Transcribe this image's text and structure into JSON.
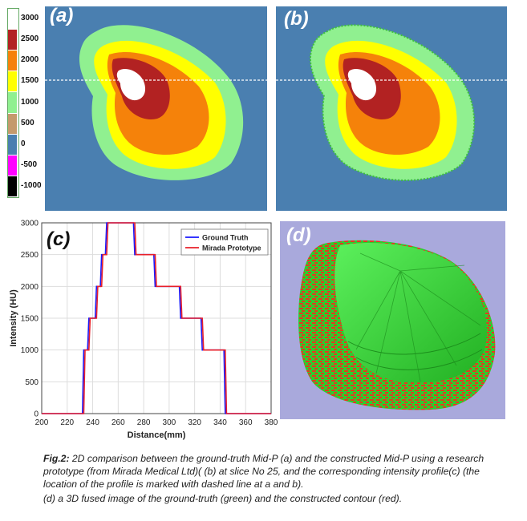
{
  "colorbar": {
    "labels": [
      "3000",
      "2500",
      "2000",
      "1500",
      "1000",
      "500",
      "0",
      "-500",
      "-1000"
    ],
    "colors": [
      "#ffffff",
      "#b22222",
      "#f5820a",
      "#ffff00",
      "#90f090",
      "#c49a6c",
      "#4a7fb0",
      "#ff00ff",
      "#000000"
    ]
  },
  "panels": {
    "a": {
      "label": "(a)"
    },
    "b": {
      "label": "(b)"
    },
    "c": {
      "label": "(c)"
    },
    "d": {
      "label": "(d)"
    }
  },
  "chart_data": {
    "type": "line",
    "xlabel": "Distance(mm)",
    "ylabel": "Intensity (HU)",
    "xlim": [
      200,
      380
    ],
    "ylim": [
      0,
      3000
    ],
    "x_ticks": [
      200,
      220,
      240,
      260,
      280,
      300,
      320,
      340,
      360,
      380
    ],
    "y_ticks": [
      0,
      500,
      1000,
      1500,
      2000,
      2500,
      3000
    ],
    "grid": true,
    "legend_position": "top-right",
    "series": [
      {
        "name": "Ground Truth",
        "color": "#1a1aff",
        "x": [
          200,
          232,
          233,
          236,
          237,
          242,
          243,
          246,
          247,
          250,
          251,
          253,
          254,
          272,
          273,
          288,
          289,
          308,
          309,
          325,
          326,
          343,
          344,
          380
        ],
        "y": [
          0,
          0,
          1000,
          1000,
          1500,
          1500,
          2000,
          2000,
          2500,
          2500,
          3000,
          3000,
          3000,
          3000,
          2500,
          2500,
          2000,
          2000,
          1500,
          1500,
          1000,
          1000,
          0,
          0
        ]
      },
      {
        "name": "Mirada Prototype",
        "color": "#e8202a",
        "x": [
          200,
          233,
          234,
          237,
          238,
          243,
          244,
          247,
          248,
          251,
          252,
          254,
          255,
          273,
          274,
          289,
          290,
          309,
          310,
          326,
          327,
          344,
          345,
          380
        ],
        "y": [
          0,
          0,
          1000,
          1000,
          1500,
          1500,
          2000,
          2000,
          2500,
          2500,
          3000,
          3000,
          3000,
          3000,
          2500,
          2500,
          2000,
          2000,
          1500,
          1500,
          1000,
          1000,
          0,
          0
        ]
      }
    ]
  },
  "caption": {
    "fig_label": "Fig.2:",
    "line1": " 2D comparison between the ground-truth Mid-P (a) and  the  constructed Mid-P using a research prototype (from Mirada Medical Ltd)( (b) at slice No 25, and the corresponding intensity  profile(c) (the location of the profile is marked with dashed line at a and b).",
    "line2": "(d) a 3D fused image of the ground-truth (green) and the constructed contour (red)."
  }
}
